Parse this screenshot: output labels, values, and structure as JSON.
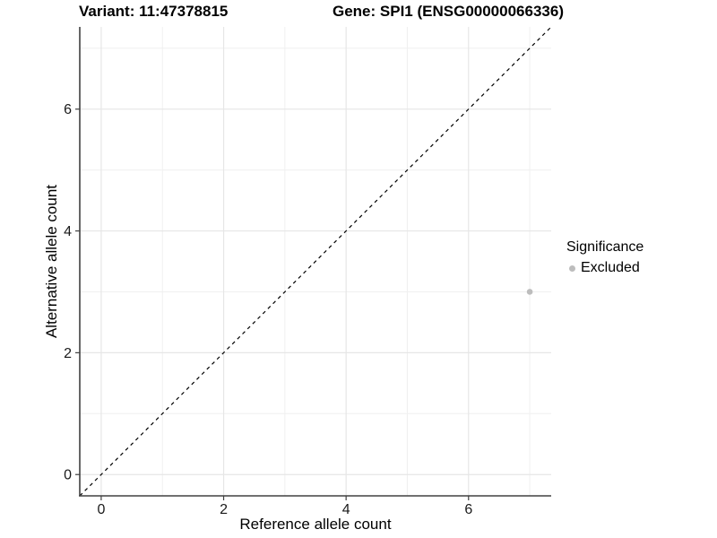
{
  "header": {
    "variant_title": "Variant: 11:47378815",
    "gene_title": "Gene: SPI1 (ENSG00000066336)"
  },
  "chart_data": {
    "type": "scatter",
    "xlabel": "Reference allele count",
    "ylabel": "Alternative allele count",
    "xlim": [
      -0.35,
      7.35
    ],
    "ylim": [
      -0.35,
      7.35
    ],
    "x_ticks": [
      0,
      2,
      4,
      6
    ],
    "y_ticks": [
      0,
      2,
      4,
      6
    ],
    "x_minor_gridlines": [
      1,
      3,
      5,
      7
    ],
    "y_minor_gridlines": [
      1,
      3,
      5,
      7
    ],
    "grid": "major+minor",
    "identity_line": {
      "type": "abline",
      "slope": 1,
      "intercept": 0,
      "style": "dashed",
      "color": "#000000"
    },
    "series": [
      {
        "name": "Excluded",
        "color": "#bdbdbd",
        "points": [
          {
            "x": 7,
            "y": 3
          }
        ]
      }
    ],
    "legend": {
      "title": "Significance",
      "position": "right",
      "entries": [
        {
          "label": "Excluded",
          "color": "#bdbdbd"
        }
      ]
    }
  },
  "style": {
    "axis_line_color": "#404040",
    "grid_major_color": "#e6e6e6",
    "grid_minor_color": "#f0f0f0",
    "tick_label_color": "#1a1a1a",
    "point_radius": 3.3
  }
}
